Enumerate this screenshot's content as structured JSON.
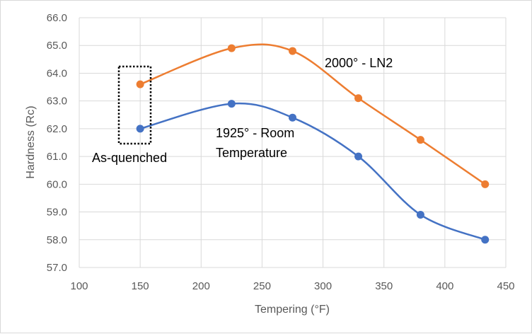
{
  "chart_data": {
    "type": "line",
    "title": "",
    "xlabel": "Tempering (°F)",
    "ylabel": "Hardness (Rc)",
    "xlim": [
      100,
      450
    ],
    "ylim": [
      57,
      66
    ],
    "xticks": [
      "100",
      "150",
      "200",
      "250",
      "300",
      "350",
      "400",
      "450"
    ],
    "yticks": [
      "57.0",
      "58.0",
      "59.0",
      "60.0",
      "61.0",
      "62.0",
      "63.0",
      "64.0",
      "65.0",
      "66.0"
    ],
    "grid": true,
    "smooth": true,
    "series": [
      {
        "name": "2000° - LN2",
        "color": "#ED7D31",
        "x": [
          150,
          225,
          275,
          329,
          380,
          433
        ],
        "y": [
          63.6,
          64.9,
          64.8,
          63.1,
          61.6,
          60.0
        ]
      },
      {
        "name": "1925° - Room Temperature",
        "color": "#4472C4",
        "x": [
          150,
          225,
          275,
          329,
          380,
          433
        ],
        "y": [
          62.0,
          62.9,
          62.4,
          61.0,
          58.9,
          58.0
        ]
      }
    ],
    "annotations": {
      "ln2": "2000° - LN2",
      "room_line1": "1925° - Room",
      "room_line2": "Temperature",
      "as_quenched": "As-quenched"
    }
  }
}
